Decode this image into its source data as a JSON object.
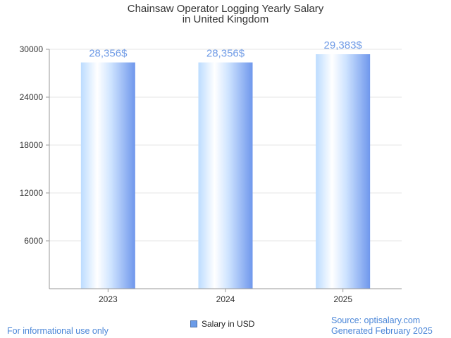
{
  "chart_data": {
    "type": "bar",
    "title": [
      "Chainsaw Operator Logging Yearly Salary",
      "in United Kingdom"
    ],
    "categories": [
      "2023",
      "2024",
      "2025"
    ],
    "series": [
      {
        "name": "Salary in USD",
        "values": [
          28356,
          28356,
          29383
        ]
      }
    ],
    "data_labels": [
      "28,356$",
      "28,356$",
      "29,383$"
    ],
    "y_ticks": [
      6000,
      12000,
      18000,
      24000,
      30000
    ],
    "ylim": [
      0,
      30000
    ],
    "grid": true,
    "legend": "bottom-center",
    "xlabel": "",
    "ylabel": ""
  },
  "footer": {
    "left": "For informational use only",
    "source": "Source: optisalary.com",
    "generated": "Generated February 2025"
  },
  "colors": {
    "bar_light": "#ffffff",
    "bar_mid": "#bcdcff",
    "bar_dark": "#6f97ec",
    "label": "#6f9be6",
    "grid": "#e6e6e6"
  }
}
